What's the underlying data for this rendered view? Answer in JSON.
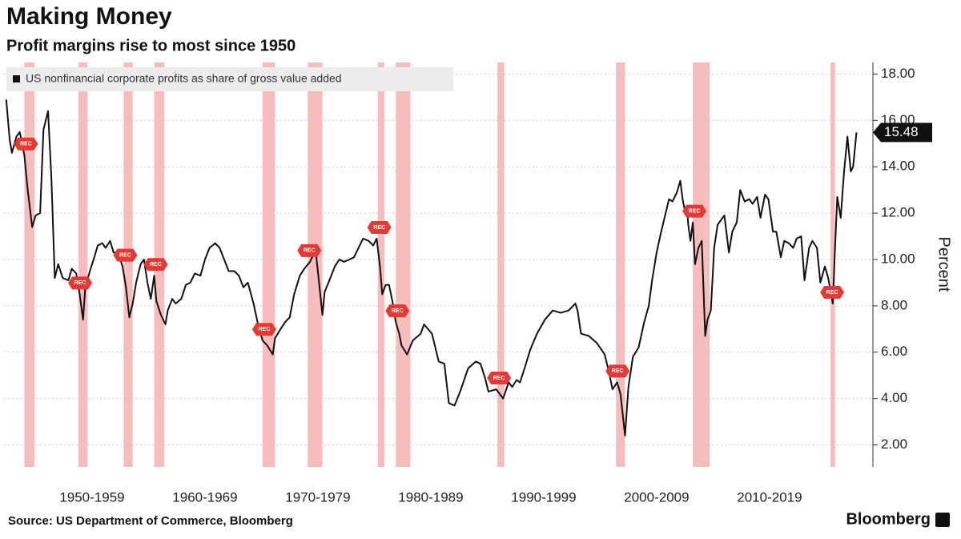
{
  "chart_data": {
    "type": "line",
    "title": "Making Money",
    "subtitle": "Profit margins rise to most since 1950",
    "y_label": "Percent",
    "source": "Source: US Department of Commerce, Bloomberg",
    "brand": "Bloomberg",
    "recession_label": "REC",
    "recession_color": "#f4a6a6",
    "grid": true,
    "xlim": [
      1947.2,
      2023.8
    ],
    "ylim": [
      1.05,
      18.5
    ],
    "yticks": [
      {
        "value": 2,
        "label": "2.00"
      },
      {
        "value": 4,
        "label": "4.00"
      },
      {
        "value": 6,
        "label": "6.00"
      },
      {
        "value": 8,
        "label": "8.00"
      },
      {
        "value": 10,
        "label": "10.00"
      },
      {
        "value": 12,
        "label": "12.00"
      },
      {
        "value": 14,
        "label": "14.00"
      },
      {
        "value": 16,
        "label": "16.00"
      },
      {
        "value": 18,
        "label": "18.00"
      }
    ],
    "xticks": [
      {
        "value": 1955,
        "label": "1950-1959"
      },
      {
        "value": 1965,
        "label": "1960-1969"
      },
      {
        "value": 1975,
        "label": "1970-1979"
      },
      {
        "value": 1985,
        "label": "1980-1989"
      },
      {
        "value": 1995,
        "label": "1990-1999"
      },
      {
        "value": 2005,
        "label": "2000-2009"
      },
      {
        "value": 2015,
        "label": "2010-2019"
      }
    ],
    "recessions": [
      [
        1949.0,
        1949.9
      ],
      [
        1953.8,
        1954.6
      ],
      [
        1957.8,
        1958.6
      ],
      [
        1960.5,
        1961.4
      ],
      [
        1970.1,
        1971.2
      ],
      [
        1974.1,
        1975.4
      ],
      [
        1980.3,
        1980.9
      ],
      [
        1981.9,
        1983.2
      ],
      [
        1990.9,
        1991.5
      ],
      [
        2001.4,
        2002.2
      ],
      [
        2008.2,
        2009.7
      ],
      [
        2020.4,
        2020.8
      ]
    ],
    "x": [
      1947.4,
      1947.7,
      1947.9,
      1948.3,
      1948.6,
      1949.0,
      1949.3,
      1949.7,
      1950.0,
      1950.4,
      1950.7,
      1951.1,
      1951.4,
      1951.7,
      1952.0,
      1952.4,
      1952.9,
      1953.2,
      1953.6,
      1953.9,
      1954.2,
      1954.4,
      1954.8,
      1955.2,
      1955.5,
      1955.9,
      1956.2,
      1956.6,
      1956.9,
      1957.3,
      1957.7,
      1958.0,
      1958.3,
      1958.6,
      1958.9,
      1959.3,
      1959.6,
      1959.9,
      1960.2,
      1960.5,
      1960.7,
      1961.1,
      1961.5,
      1961.7,
      1962.1,
      1962.4,
      1962.9,
      1963.3,
      1963.7,
      1964.1,
      1964.6,
      1965.0,
      1965.4,
      1965.9,
      1966.3,
      1966.7,
      1967.1,
      1967.6,
      1968.0,
      1968.4,
      1968.8,
      1969.3,
      1969.7,
      1970.1,
      1970.5,
      1971.0,
      1971.2,
      1971.7,
      1972.1,
      1972.5,
      1972.9,
      1973.4,
      1973.8,
      1974.3,
      1974.8,
      1975.1,
      1975.4,
      1975.6,
      1976.1,
      1976.5,
      1976.9,
      1977.3,
      1977.8,
      1978.2,
      1978.6,
      1979.0,
      1979.5,
      1979.9,
      1980.2,
      1980.5,
      1980.7,
      1981.0,
      1981.3,
      1981.6,
      1981.9,
      1982.2,
      1982.4,
      1982.9,
      1983.4,
      1984.1,
      1984.4,
      1985.1,
      1985.7,
      1986.2,
      1986.6,
      1987.1,
      1987.6,
      1988.3,
      1989.0,
      1989.4,
      1989.8,
      1990.1,
      1990.8,
      1991.4,
      1991.9,
      1992.2,
      1992.6,
      1992.9,
      1993.3,
      1993.8,
      1994.4,
      1995.1,
      1995.8,
      1996.5,
      1997.2,
      1997.8,
      1998.0,
      1998.3,
      1999.0,
      1999.7,
      2000.4,
      2000.7,
      2001.1,
      2001.5,
      2001.8,
      2002.2,
      2002.5,
      2002.9,
      2003.4,
      2003.9,
      2004.3,
      2004.6,
      2005.0,
      2005.4,
      2005.7,
      2006.1,
      2006.4,
      2006.8,
      2007.1,
      2007.3,
      2007.5,
      2007.7,
      2007.8,
      2008.0,
      2008.2,
      2008.4,
      2008.7,
      2009.0,
      2009.3,
      2009.5,
      2009.8,
      2010.1,
      2010.4,
      2010.7,
      2011.0,
      2011.4,
      2011.7,
      2012.1,
      2012.4,
      2012.8,
      2013.2,
      2013.5,
      2013.9,
      2014.2,
      2014.6,
      2014.9,
      2015.3,
      2015.6,
      2016.0,
      2016.3,
      2016.7,
      2017.1,
      2017.4,
      2017.8,
      2018.1,
      2018.5,
      2018.8,
      2019.2,
      2019.5,
      2019.9,
      2020.2,
      2020.6,
      2020.8,
      2021.0,
      2021.3,
      2021.6,
      2021.9,
      2022.2,
      2022.4,
      2022.7
    ],
    "series": [
      {
        "name": "US nonfinancial corporate profits as share of gross value added",
        "color": "#111111",
        "values": [
          16.9,
          15.2,
          14.6,
          15.3,
          15.5,
          14.5,
          13.0,
          11.4,
          11.9,
          12.0,
          15.6,
          16.4,
          13.5,
          9.2,
          9.8,
          9.2,
          9.1,
          9.6,
          9.4,
          8.5,
          7.4,
          8.8,
          9.5,
          10.1,
          10.6,
          10.7,
          10.5,
          10.8,
          10.3,
          10.3,
          9.7,
          8.8,
          7.5,
          8.1,
          9.0,
          9.8,
          10.0,
          9.0,
          8.3,
          9.3,
          8.2,
          7.6,
          7.2,
          7.8,
          8.3,
          8.1,
          8.3,
          8.9,
          9.0,
          9.4,
          9.3,
          10.0,
          10.5,
          10.7,
          10.5,
          10.0,
          9.5,
          9.5,
          9.3,
          8.8,
          9.0,
          8.1,
          7.2,
          6.5,
          6.3,
          5.9,
          6.6,
          7.0,
          7.3,
          7.5,
          8.5,
          9.3,
          9.6,
          9.9,
          10.4,
          9.0,
          7.6,
          8.6,
          9.2,
          9.7,
          10.0,
          9.9,
          10.0,
          10.1,
          10.5,
          10.9,
          10.8,
          10.6,
          10.9,
          9.7,
          8.5,
          8.9,
          8.9,
          8.2,
          7.3,
          6.8,
          6.3,
          5.9,
          6.5,
          6.8,
          7.2,
          6.8,
          5.6,
          5.5,
          3.8,
          3.7,
          4.3,
          5.3,
          5.6,
          5.5,
          4.9,
          4.3,
          4.4,
          4.0,
          4.7,
          4.5,
          4.8,
          4.7,
          5.3,
          6.1,
          6.8,
          7.4,
          7.8,
          7.7,
          7.8,
          8.1,
          7.8,
          6.8,
          6.7,
          6.4,
          5.9,
          5.3,
          4.4,
          4.7,
          4.2,
          2.4,
          4.5,
          5.8,
          6.2,
          7.3,
          8.0,
          9.1,
          10.3,
          11.2,
          11.8,
          12.6,
          12.5,
          12.9,
          13.4,
          12.6,
          12.1,
          12.2,
          11.5,
          10.8,
          11.6,
          9.8,
          10.5,
          10.8,
          6.7,
          7.4,
          7.8,
          10.5,
          11.5,
          11.7,
          11.9,
          10.3,
          11.2,
          11.6,
          13.0,
          12.5,
          12.6,
          12.4,
          12.7,
          11.8,
          12.8,
          12.6,
          11.2,
          11.2,
          10.1,
          10.8,
          10.7,
          10.5,
          10.9,
          11.0,
          9.1,
          10.5,
          10.8,
          10.5,
          9.0,
          9.7,
          9.2,
          8.1,
          10.5,
          12.7,
          11.8,
          13.8,
          15.3,
          13.8,
          14.0,
          15.48
        ]
      }
    ]
  }
}
